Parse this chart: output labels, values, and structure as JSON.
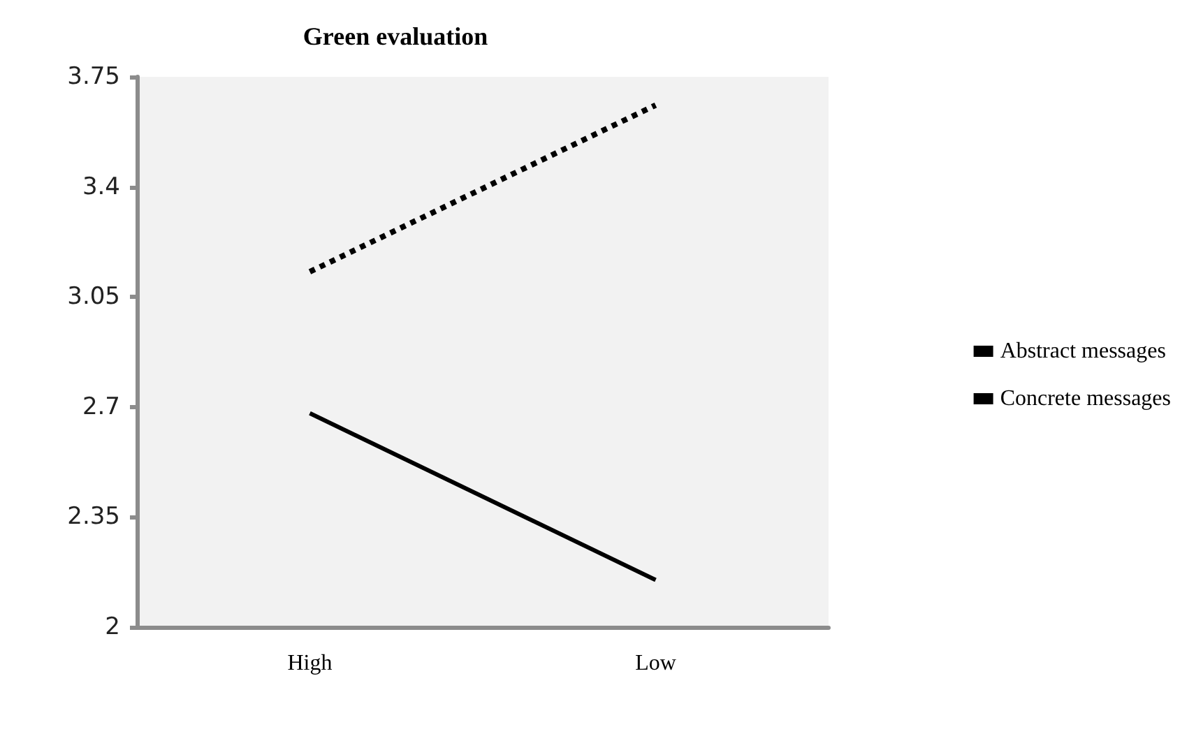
{
  "chart_data": {
    "type": "line",
    "title": "Green evaluation",
    "categories": [
      "High",
      "Low"
    ],
    "series": [
      {
        "name": "Abstract messages",
        "color": "#000000",
        "values": [
          3.13,
          3.66
        ],
        "line_style": "dotted"
      },
      {
        "name": "Concrete messages",
        "color": "#000000",
        "values": [
          2.68,
          2.15
        ],
        "line_style": "solid"
      }
    ],
    "ylim": [
      2,
      3.75
    ],
    "yticks": [
      2,
      2.35,
      2.7,
      3.05,
      3.4,
      3.75
    ],
    "grid": false,
    "legend": "right",
    "marker": "none"
  }
}
